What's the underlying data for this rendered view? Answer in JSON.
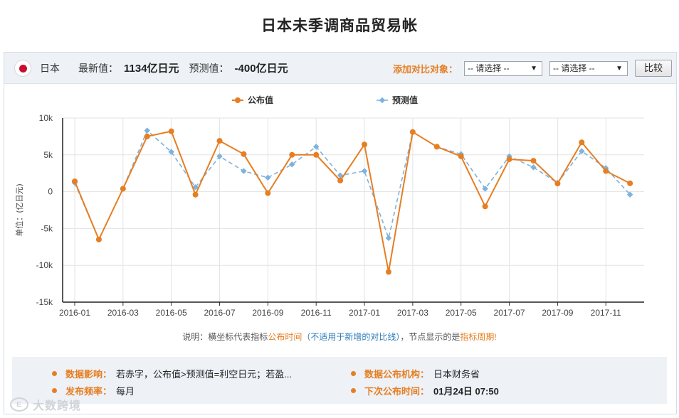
{
  "page": {
    "title": "日本未季调商品贸易帐"
  },
  "topbar": {
    "country": "日本",
    "latest_label": "最新值：",
    "latest_value": "1134亿日元",
    "forecast_label": "预测值：",
    "forecast_value": "-400亿日元",
    "compare_label": "添加对比对象：",
    "select1": "-- 请选择 --",
    "select2": "-- 请选择 --",
    "compare_button": "比较"
  },
  "colors": {
    "published": "#e67e22",
    "forecast": "#7fb2dd",
    "accent": "#e67e22"
  },
  "chart_data": {
    "type": "line",
    "ylabel": "单位：(亿日元)",
    "ylim": [
      -15000,
      10000
    ],
    "yticks": [
      10000,
      5000,
      0,
      -5000,
      -10000,
      -15000
    ],
    "ytick_labels": [
      "10k",
      "5k",
      "0",
      "-5k",
      "-10k",
      "-15k"
    ],
    "x": [
      "2016-01",
      "2016-02",
      "2016-03",
      "2016-04",
      "2016-05",
      "2016-06",
      "2016-07",
      "2016-08",
      "2016-09",
      "2016-10",
      "2016-11",
      "2016-12",
      "2017-01",
      "2017-02",
      "2017-03",
      "2017-04",
      "2017-05",
      "2017-06",
      "2017-07",
      "2017-08",
      "2017-09",
      "2017-10",
      "2017-11",
      "2017-12"
    ],
    "xtick_labels": [
      "2016-01",
      "2016-03",
      "2016-05",
      "2016-07",
      "2016-09",
      "2016-11",
      "2017-01",
      "2017-03",
      "2017-05",
      "2017-07",
      "2017-09",
      "2017-11"
    ],
    "grid": true,
    "legend_position": "top-center",
    "series": [
      {
        "name": "公布值",
        "style": "solid",
        "values": [
          1400,
          -6500,
          400,
          7500,
          8200,
          -400,
          6900,
          5100,
          -200,
          5000,
          5000,
          1500,
          6400,
          -10900,
          8100,
          6100,
          4800,
          -2000,
          4400,
          4200,
          1100,
          6700,
          2800,
          1134
        ]
      },
      {
        "name": "预测值",
        "style": "dashed",
        "values": [
          1200,
          -6500,
          400,
          8300,
          5400,
          600,
          4800,
          2800,
          1900,
          3700,
          6100,
          2200,
          2800,
          -6300,
          8100,
          6100,
          5100,
          400,
          4800,
          3300,
          1200,
          5500,
          3200,
          -400
        ]
      }
    ]
  },
  "note": {
    "prefix": "说明：横坐标代表指标",
    "publish_time": "公布时间",
    "paren": "（不适用于新增的对比线）",
    "mid": "，节点显示的是",
    "period": "指标周期!"
  },
  "info": {
    "impact_label": "数据影响：",
    "impact_value": "若赤字，公布值>预测值=利空日元；若盈...",
    "agency_label": "数据公布机构：",
    "agency_value": "日本财务省",
    "freq_label": "发布频率：",
    "freq_value": "每月",
    "next_label": "下次公布时间：",
    "next_value": "01月24日 07:50"
  },
  "watermark": {
    "text": "大数跨境",
    "logo": "E"
  }
}
